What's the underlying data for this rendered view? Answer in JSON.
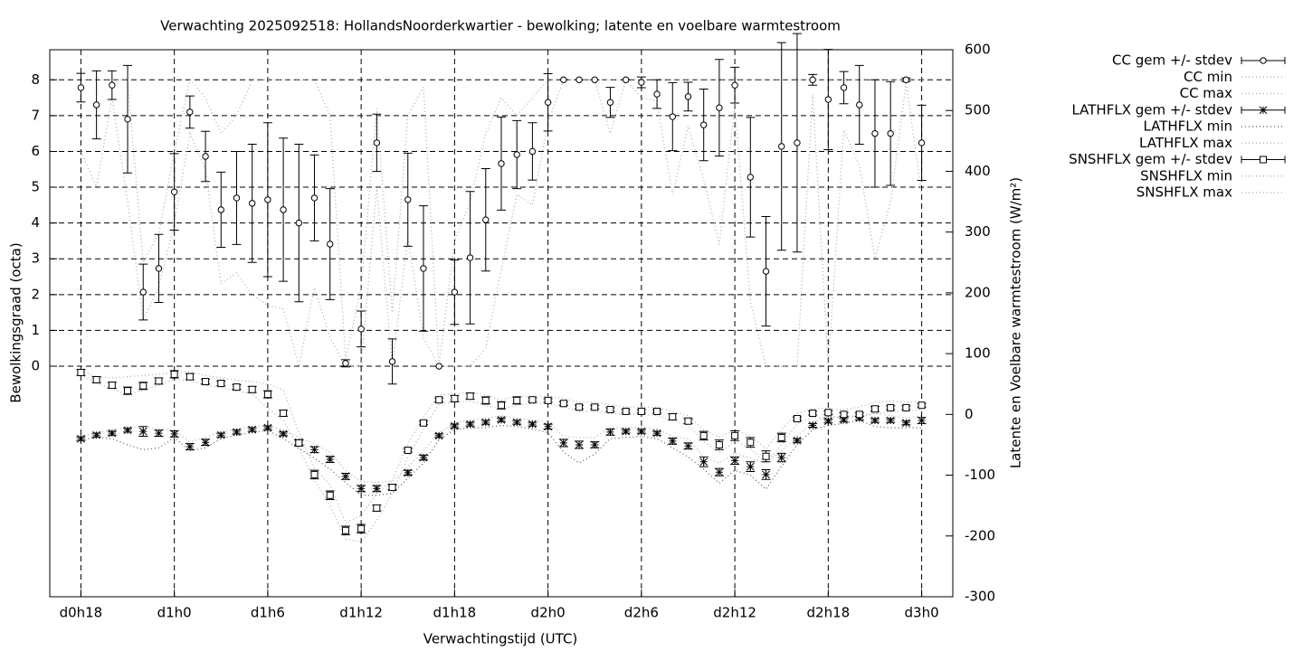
{
  "chart_data": {
    "type": "errorbars",
    "title": "Verwachting 2025092518: HollandsNoorderkwartier - bewolking; latente en voelbare warmtestroom",
    "x_label": "Verwachtingstijd (UTC)",
    "y_label": "Bewolkingsgraad (octa)",
    "y2_label": "Latente en Voelbare warmtestroom (W/m²)",
    "x": [
      18,
      19,
      20,
      21,
      22,
      23,
      24,
      25,
      26,
      27,
      28,
      29,
      30,
      31,
      32,
      33,
      34,
      35,
      36,
      37,
      38,
      39,
      40,
      41,
      42,
      43,
      44,
      45,
      46,
      47,
      48,
      49,
      50,
      51,
      52,
      53,
      54,
      55,
      56,
      57,
      58,
      59,
      60,
      61,
      62,
      63,
      64,
      65,
      66,
      67,
      68,
      69,
      70,
      71,
      72
    ],
    "xlim": [
      16,
      74
    ],
    "xticks": [
      {
        "value": 18,
        "label": "d0h18"
      },
      {
        "value": 24,
        "label": "d1h0"
      },
      {
        "value": 30,
        "label": "d1h6"
      },
      {
        "value": 36,
        "label": "d1h12"
      },
      {
        "value": 42,
        "label": "d1h18"
      },
      {
        "value": 48,
        "label": "d2h0"
      },
      {
        "value": 54,
        "label": "d2h6"
      },
      {
        "value": 60,
        "label": "d2h12"
      },
      {
        "value": 66,
        "label": "d2h18"
      },
      {
        "value": 72,
        "label": "d3h0"
      }
    ],
    "ylim": [
      -6.44,
      8.84
    ],
    "yticks": [
      0,
      1,
      2,
      3,
      4,
      5,
      6,
      7,
      8
    ],
    "y2lim": [
      -300,
      600
    ],
    "y2ticks": [
      -300,
      -200,
      -100,
      0,
      100,
      200,
      300,
      400,
      500,
      600
    ],
    "grid": true,
    "legend": "outside-top-right",
    "series": [
      {
        "name": "CC gem +/- stdev",
        "axis": "y",
        "style": "errorbars",
        "marker": "circle",
        "color": "#000000",
        "values": [
          7.78,
          7.3,
          7.85,
          6.9,
          2.07,
          2.73,
          4.87,
          7.1,
          5.86,
          4.37,
          4.7,
          4.55,
          4.65,
          4.37,
          4.0,
          4.7,
          3.41,
          0.08,
          1.04,
          6.24,
          0.13,
          4.65,
          2.73,
          0.0,
          2.07,
          3.03,
          4.09,
          5.66,
          5.91,
          6.0,
          7.37,
          8.0,
          8.0,
          8.0,
          7.37,
          8.0,
          7.93,
          7.6,
          6.97,
          7.53,
          6.74,
          7.22,
          7.85,
          5.28,
          2.65,
          6.14,
          6.24,
          8.0,
          7.45,
          7.78,
          7.3,
          6.5,
          6.5,
          8.0,
          6.24
        ],
        "errors": [
          0.4,
          0.95,
          0.4,
          1.5,
          0.78,
          0.95,
          1.07,
          0.45,
          0.7,
          1.05,
          1.3,
          1.65,
          2.15,
          2.0,
          2.2,
          1.2,
          1.55,
          0.1,
          0.5,
          0.8,
          0.63,
          1.3,
          1.75,
          0.0,
          0.9,
          1.85,
          1.43,
          1.3,
          0.95,
          0.8,
          0.8,
          0.0,
          0.0,
          0.0,
          0.42,
          0.0,
          0.15,
          0.4,
          0.95,
          0.4,
          1.0,
          1.35,
          0.5,
          1.67,
          1.53,
          2.9,
          3.05,
          0.15,
          1.4,
          0.45,
          1.1,
          1.5,
          1.45,
          0.05,
          1.05
        ]
      },
      {
        "name": "CC min",
        "axis": "y",
        "style": "dotted",
        "color": "#aaaaaa",
        "values": [
          6,
          5,
          7.5,
          4.6,
          1.3,
          2.2,
          4,
          6.5,
          5.5,
          2.3,
          2.6,
          2,
          1.7,
          1.6,
          0,
          2.2,
          0.8,
          0,
          0,
          5,
          0,
          3.6,
          0.8,
          0,
          0,
          0,
          0.5,
          2.7,
          4.8,
          4.5,
          6.8,
          8,
          8,
          8,
          6.5,
          8,
          7.5,
          7.4,
          4.8,
          6.7,
          5.2,
          3.4,
          7.3,
          1.8,
          0,
          0,
          0,
          7.6,
          0,
          6.6,
          5.6,
          3,
          4.6,
          7.9,
          4.8
        ]
      },
      {
        "name": "CC max",
        "axis": "y",
        "style": "dotted",
        "color": "#aaaaaa",
        "values": [
          8,
          8,
          8,
          8,
          2.9,
          3.7,
          6,
          8,
          7.5,
          6.5,
          7,
          8,
          8,
          8,
          8,
          8,
          7,
          0.2,
          2.2,
          7.2,
          1.5,
          7,
          7.8,
          0,
          3.5,
          4.6,
          6.5,
          7.5,
          7,
          7.5,
          8,
          8,
          8,
          8,
          8,
          8,
          8,
          8,
          8,
          8,
          8,
          8,
          8,
          8,
          8,
          8,
          8,
          8,
          8,
          8,
          8,
          8,
          8,
          8,
          8
        ]
      },
      {
        "name": "LATHFLX gem +/- stdev",
        "axis": "y2",
        "style": "errorbars",
        "marker": "star",
        "color": "#000000",
        "values": [
          -40,
          -34,
          -31,
          -26,
          -28,
          -31,
          -32,
          -53,
          -46,
          -34,
          -29,
          -25,
          -22,
          -32,
          -46,
          -58,
          -74,
          -102,
          -122,
          -122,
          -120,
          -96,
          -71,
          -35,
          -19,
          -16,
          -13,
          -9,
          -13,
          -16,
          -20,
          -47,
          -50,
          -50,
          -29,
          -28,
          -28,
          -31,
          -44,
          -52,
          -78,
          -95,
          -76,
          -86,
          -99,
          -71,
          -43,
          -18,
          -11,
          -9,
          -6,
          -10,
          -10,
          -14,
          -10
        ],
        "errors": [
          3,
          3,
          3,
          3,
          8,
          5,
          5,
          5,
          5,
          3,
          3,
          3,
          3,
          3,
          4,
          5,
          5,
          5,
          5,
          5,
          4,
          4,
          4,
          3,
          3,
          3,
          3,
          3,
          3,
          3,
          4,
          6,
          6,
          5,
          5,
          3,
          3,
          3,
          5,
          5,
          8,
          6,
          6,
          8,
          8,
          7,
          3,
          3,
          3,
          3,
          3,
          3,
          3,
          3,
          5
        ]
      },
      {
        "name": "LATHFLX min",
        "axis": "y2",
        "style": "dotted",
        "color": "#555555",
        "values": [
          -42,
          -38,
          -40,
          -50,
          -58,
          -55,
          -38,
          -60,
          -55,
          -40,
          -34,
          -30,
          -26,
          -40,
          -56,
          -72,
          -90,
          -112,
          -133,
          -133,
          -130,
          -105,
          -80,
          -42,
          -25,
          -22,
          -22,
          -18,
          -20,
          -24,
          -30,
          -62,
          -80,
          -65,
          -40,
          -38,
          -36,
          -40,
          -55,
          -70,
          -90,
          -113,
          -92,
          -100,
          -123,
          -85,
          -50,
          -25,
          -18,
          -15,
          -10,
          -20,
          -22,
          -22,
          -22
        ]
      },
      {
        "name": "LATHFLX max",
        "axis": "y2",
        "style": "dotted",
        "color": "#aaaaaa",
        "values": [
          -36,
          -30,
          -25,
          -22,
          -20,
          -24,
          -26,
          -45,
          -38,
          -28,
          -24,
          -20,
          -18,
          -26,
          -38,
          -48,
          -62,
          -92,
          -110,
          -112,
          -110,
          -86,
          -60,
          -30,
          -14,
          -10,
          -6,
          -2,
          -6,
          -10,
          -12,
          -36,
          -38,
          -38,
          -22,
          -22,
          -22,
          -24,
          -36,
          -40,
          -70,
          -80,
          -64,
          -72,
          -80,
          -60,
          -36,
          -12,
          -4,
          -4,
          -2,
          2,
          -2,
          -6,
          -2
        ]
      },
      {
        "name": "SNSHFLX gem +/- stdev",
        "axis": "y2",
        "style": "errorbars",
        "marker": "square",
        "color": "#000000",
        "values": [
          69,
          57,
          48,
          39,
          47,
          55,
          66,
          62,
          54,
          51,
          45,
          41,
          33,
          2,
          -47,
          -99,
          -133,
          -191,
          -188,
          -154,
          -120,
          -59,
          -14,
          24,
          26,
          30,
          23,
          15,
          23,
          24,
          23,
          18,
          12,
          12,
          8,
          5,
          5,
          5,
          -4,
          -11,
          -35,
          -50,
          -35,
          -46,
          -69,
          -38,
          -7,
          2,
          3,
          0,
          0,
          9,
          11,
          11,
          15
        ],
        "errors": [
          5,
          5,
          5,
          6,
          6,
          5,
          6,
          5,
          4,
          4,
          4,
          5,
          6,
          5,
          5,
          7,
          7,
          7,
          7,
          5,
          4,
          3,
          3,
          3,
          5,
          5,
          6,
          6,
          6,
          3,
          3,
          3,
          3,
          3,
          3,
          3,
          3,
          3,
          5,
          4,
          7,
          8,
          8,
          8,
          9,
          7,
          3,
          3,
          3,
          3,
          3,
          4,
          3,
          3,
          3
        ]
      },
      {
        "name": "SNSHFLX min",
        "axis": "y2",
        "style": "dotted",
        "color": "#aaaaaa",
        "values": [
          65,
          52,
          42,
          32,
          40,
          48,
          58,
          55,
          48,
          45,
          38,
          34,
          10,
          -10,
          -55,
          -108,
          -150,
          -205,
          -210,
          -175,
          -130,
          -70,
          -25,
          18,
          20,
          22,
          15,
          8,
          15,
          18,
          18,
          12,
          5,
          5,
          2,
          0,
          0,
          -2,
          -10,
          -18,
          -45,
          -62,
          -45,
          -56,
          -80,
          -50,
          -15,
          -5,
          -5,
          -5,
          -5,
          2,
          4,
          5,
          8
        ]
      },
      {
        "name": "SNSHFLX max",
        "axis": "y2",
        "style": "dotted",
        "color": "#aaaaaa",
        "values": [
          72,
          62,
          60,
          62,
          64,
          66,
          70,
          70,
          64,
          60,
          56,
          54,
          50,
          40,
          -30,
          -88,
          -116,
          -178,
          -166,
          -130,
          -108,
          -48,
          -4,
          32,
          34,
          36,
          32,
          24,
          30,
          30,
          30,
          26,
          20,
          20,
          16,
          12,
          12,
          12,
          4,
          -2,
          -25,
          -38,
          -25,
          -36,
          -56,
          -25,
          2,
          10,
          10,
          8,
          12,
          20,
          22,
          20,
          22
        ]
      }
    ]
  }
}
